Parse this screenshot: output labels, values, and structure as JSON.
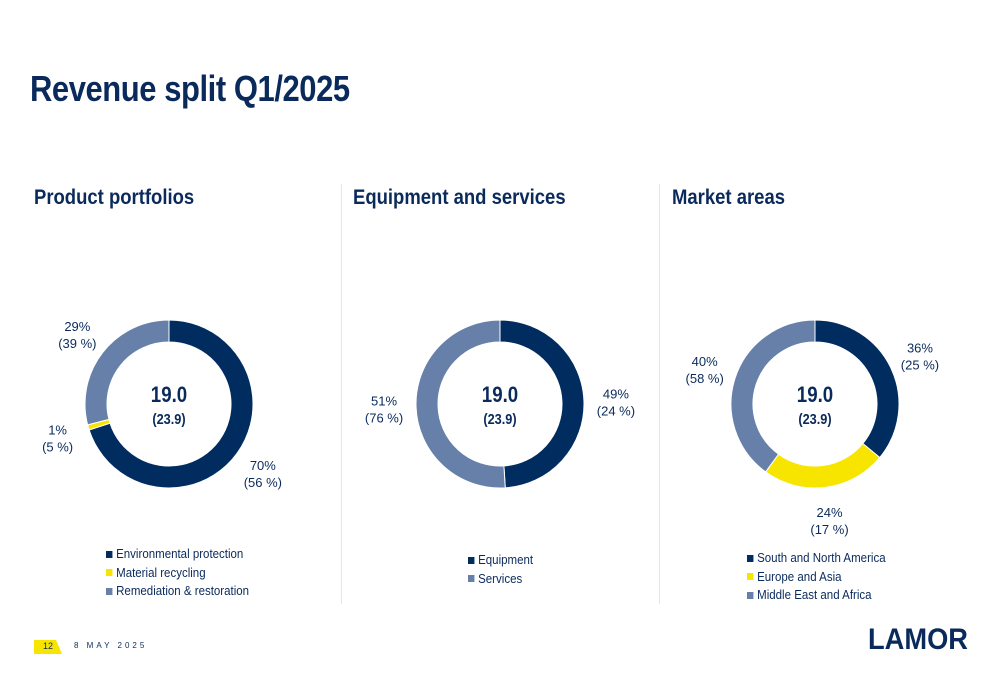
{
  "title": "Revenue split Q1/2025",
  "colors": {
    "navy": "#002c5f",
    "yellow": "#f7e500",
    "steel": "#6680aa",
    "title": "#0a2a5c"
  },
  "footer": {
    "page_number": "12",
    "date": "8 MAY 2025",
    "logo_text": "LAMOR"
  },
  "chart_data": [
    {
      "type": "pie",
      "title": "Product portfolios",
      "center_value": "19.0",
      "center_prev": "(23.9)",
      "series": [
        {
          "name": "Environmental protection",
          "value": 70,
          "label": "70%",
          "prev_label": "(56 %)",
          "color": "#002c5f"
        },
        {
          "name": "Material recycling",
          "value": 1,
          "label": "1%",
          "prev_label": "(5 %)",
          "color": "#f7e500"
        },
        {
          "name": "Remediation & restoration",
          "value": 29,
          "label": "29%",
          "prev_label": "(39 %)",
          "color": "#6680aa"
        }
      ]
    },
    {
      "type": "pie",
      "title": "Equipment and services",
      "center_value": "19.0",
      "center_prev": "(23.9)",
      "series": [
        {
          "name": "Equipment",
          "value": 49,
          "label": "49%",
          "prev_label": "(24 %)",
          "color": "#002c5f"
        },
        {
          "name": "Services",
          "value": 51,
          "label": "51%",
          "prev_label": "(76 %)",
          "color": "#6680aa"
        }
      ]
    },
    {
      "type": "pie",
      "title": "Market areas",
      "center_value": "19.0",
      "center_prev": "(23.9)",
      "series": [
        {
          "name": "South and North America",
          "value": 36,
          "label": "36%",
          "prev_label": "(25 %)",
          "color": "#002c5f"
        },
        {
          "name": "Europe and Asia",
          "value": 24,
          "label": "24%",
          "prev_label": "(17 %)",
          "color": "#f7e500"
        },
        {
          "name": "Middle East and Africa",
          "value": 40,
          "label": "40%",
          "prev_label": "(58 %)",
          "color": "#6680aa"
        }
      ]
    }
  ]
}
